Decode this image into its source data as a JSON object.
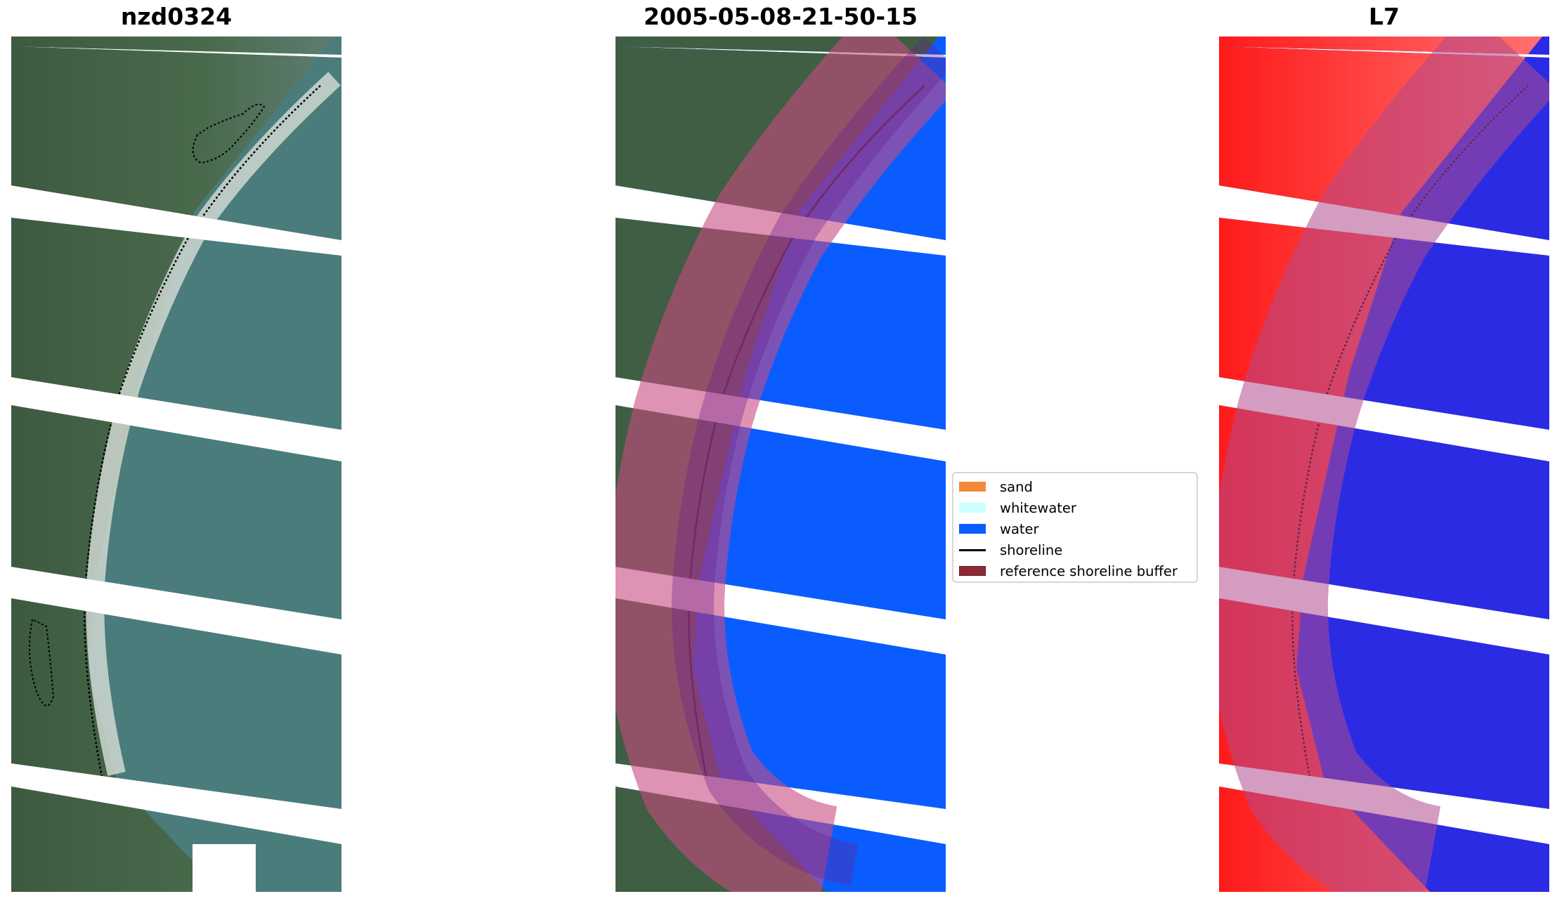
{
  "figure": {
    "panels": [
      {
        "title": "nzd0324",
        "layer": "rgb"
      },
      {
        "title": "2005-05-08-21-50-15",
        "layer": "classified"
      },
      {
        "title": "L7",
        "layer": "index"
      }
    ],
    "legend": {
      "position": "center",
      "items": [
        {
          "label": "sand",
          "kind": "patch",
          "color": "#f28a3a"
        },
        {
          "label": "whitewater",
          "kind": "patch",
          "color": "#ccffff"
        },
        {
          "label": "water",
          "kind": "patch",
          "color": "#0a5cff"
        },
        {
          "label": "shoreline",
          "kind": "line",
          "color": "#000000"
        },
        {
          "label": "reference shoreline buffer",
          "kind": "patch",
          "color": "#8b2a35"
        }
      ]
    },
    "colors": {
      "land": "#3b5a3e",
      "sea_rgb": "#4a7b7c",
      "water_class": "#0a5cff",
      "buffer": "#c84b82",
      "index_land": "#ff2020",
      "index_water": "#2828e6"
    }
  }
}
